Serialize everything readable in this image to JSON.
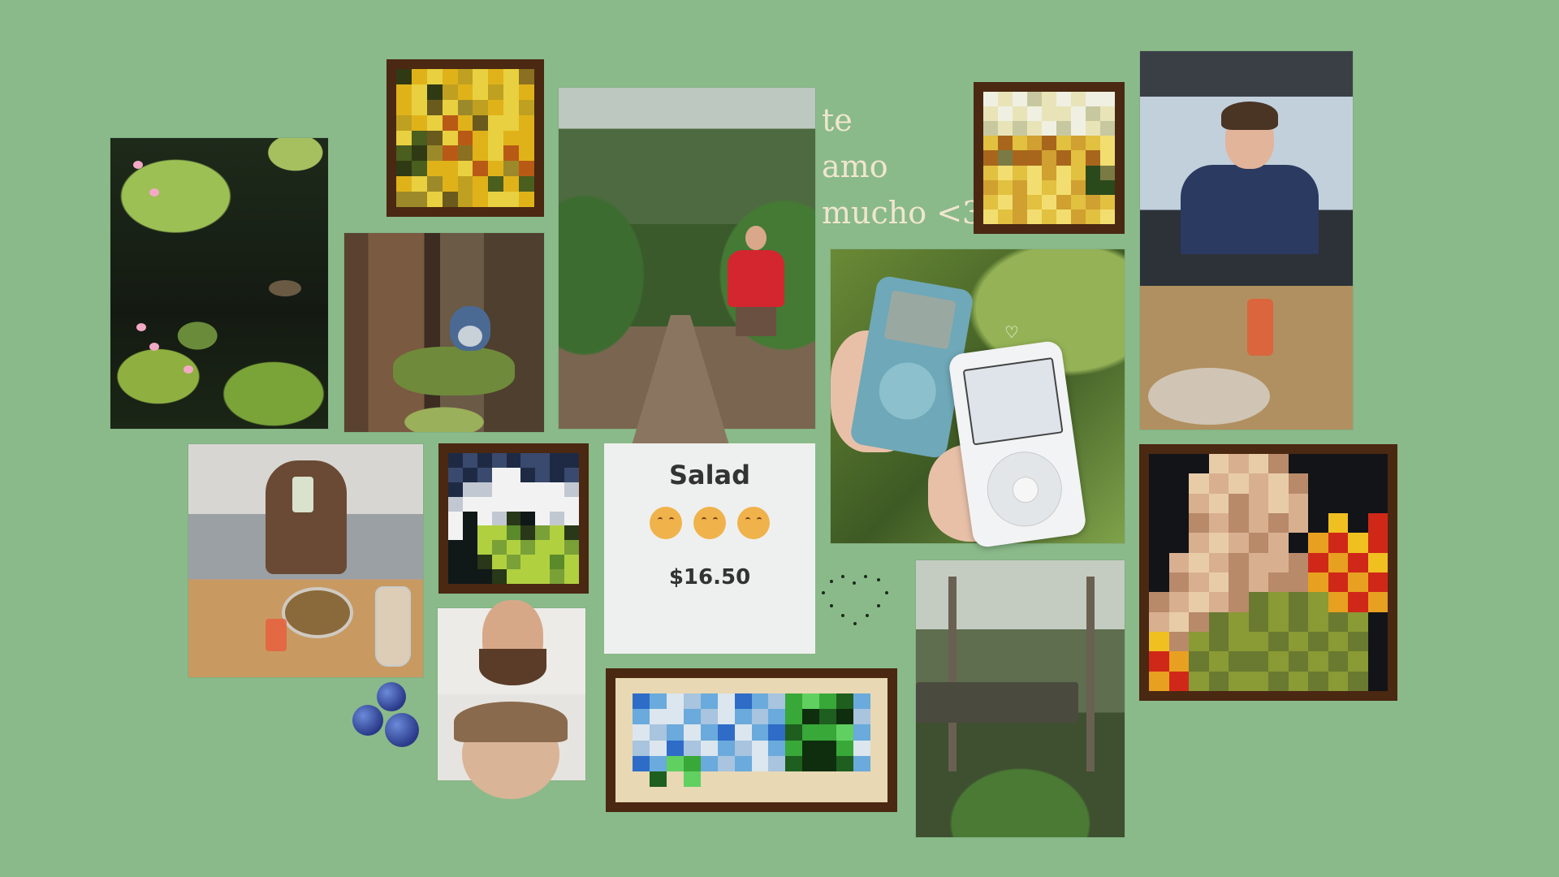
{
  "background_color": "#8aba8a",
  "love_text": {
    "line1": "te",
    "line2": "amo",
    "line3": "mucho <3"
  },
  "salad_card": {
    "title": "Salad",
    "price": "$16.50"
  },
  "pixel_art": {
    "sunflowers": {
      "cols": 9,
      "rows": 9,
      "palette": [
        "#2f3a14",
        "#e0b21a",
        "#9c8a2a",
        "#6a5a1e",
        "#c0a020",
        "#4a5e1e",
        "#e8d040",
        "#b85a16",
        "#8a7020"
      ],
      "cells": [
        0,
        1,
        6,
        1,
        4,
        6,
        1,
        6,
        8,
        1,
        6,
        0,
        4,
        1,
        6,
        4,
        6,
        1,
        1,
        6,
        3,
        6,
        2,
        4,
        1,
        6,
        4,
        4,
        1,
        6,
        7,
        1,
        3,
        6,
        6,
        1,
        6,
        5,
        3,
        6,
        7,
        1,
        6,
        1,
        1,
        5,
        0,
        2,
        7,
        8,
        1,
        6,
        7,
        1,
        0,
        5,
        1,
        1,
        6,
        7,
        1,
        2,
        7,
        1,
        6,
        2,
        1,
        4,
        1,
        5,
        1,
        5,
        2,
        2,
        6,
        3,
        4,
        1,
        6,
        6,
        1
      ]
    },
    "houses": {
      "cols": 9,
      "rows": 9,
      "palette": [
        "#f0f0e2",
        "#e8e4b8",
        "#c8c8a0",
        "#e2c040",
        "#a8661c",
        "#d0a030",
        "#f2de70",
        "#7a7a44",
        "#2a4a1c"
      ],
      "cells": [
        0,
        1,
        0,
        2,
        1,
        0,
        1,
        0,
        0,
        1,
        0,
        1,
        0,
        1,
        1,
        0,
        2,
        1,
        2,
        1,
        2,
        1,
        0,
        2,
        0,
        1,
        2,
        3,
        4,
        3,
        5,
        4,
        3,
        5,
        3,
        6,
        4,
        7,
        4,
        4,
        5,
        4,
        3,
        4,
        6,
        3,
        6,
        3,
        6,
        5,
        6,
        3,
        8,
        7,
        5,
        3,
        5,
        6,
        3,
        6,
        5,
        8,
        8,
        3,
        6,
        5,
        3,
        6,
        5,
        3,
        5,
        3,
        6,
        3,
        5,
        6,
        3,
        6,
        5,
        3,
        6
      ]
    },
    "landscape": {
      "cols": 9,
      "rows": 9,
      "palette": [
        "#1e2a44",
        "#3a4a6e",
        "#f2f2f2",
        "#c2c8d2",
        "#101818",
        "#b0d040",
        "#5a8a2a",
        "#283818",
        "#7aa038"
      ],
      "cells": [
        0,
        1,
        0,
        1,
        0,
        1,
        1,
        0,
        0,
        1,
        0,
        1,
        2,
        2,
        0,
        1,
        0,
        1,
        0,
        3,
        3,
        2,
        2,
        2,
        2,
        2,
        3,
        3,
        2,
        2,
        2,
        2,
        2,
        2,
        2,
        2,
        2,
        4,
        2,
        3,
        7,
        4,
        2,
        3,
        2,
        2,
        4,
        5,
        5,
        6,
        7,
        8,
        5,
        7,
        4,
        4,
        5,
        8,
        5,
        8,
        5,
        5,
        8,
        4,
        4,
        7,
        5,
        8,
        5,
        5,
        6,
        5,
        4,
        4,
        4,
        7,
        5,
        5,
        5,
        8,
        5
      ]
    },
    "creeper": {
      "cols": 16,
      "rows": 8,
      "palette": [
        "#e8d8b4",
        "#2e6cc8",
        "#6aaadc",
        "#dce6ee",
        "#a8c4de",
        "#38a838",
        "#1e5e1e",
        "#60d060",
        "#0e2e0e"
      ],
      "cells": [
        0,
        0,
        0,
        0,
        0,
        0,
        0,
        0,
        0,
        0,
        0,
        0,
        0,
        0,
        0,
        0,
        0,
        1,
        2,
        3,
        4,
        2,
        3,
        1,
        2,
        4,
        5,
        7,
        5,
        6,
        2,
        0,
        0,
        2,
        3,
        3,
        2,
        4,
        3,
        2,
        4,
        2,
        5,
        8,
        6,
        8,
        4,
        0,
        0,
        3,
        4,
        2,
        3,
        2,
        1,
        3,
        2,
        1,
        6,
        5,
        5,
        7,
        2,
        0,
        0,
        4,
        3,
        1,
        4,
        3,
        2,
        4,
        3,
        2,
        5,
        8,
        8,
        5,
        3,
        0,
        0,
        1,
        2,
        7,
        5,
        2,
        4,
        2,
        3,
        4,
        6,
        8,
        8,
        6,
        2,
        0,
        0,
        0,
        6,
        0,
        7,
        0,
        0,
        0,
        0,
        0,
        0,
        0,
        0,
        0,
        0,
        0,
        0,
        0,
        0,
        0,
        0,
        0,
        0,
        0,
        0,
        0,
        0,
        0,
        0,
        0,
        0,
        0
      ]
    },
    "statue": {
      "cols": 12,
      "rows": 12,
      "palette": [
        "#121418",
        "#d8b090",
        "#b88a6a",
        "#e8cca8",
        "#e8a020",
        "#d02818",
        "#f0c020",
        "#6a7a30",
        "#8a9a34"
      ],
      "cells": [
        0,
        0,
        0,
        3,
        1,
        3,
        2,
        0,
        0,
        0,
        0,
        0,
        0,
        0,
        3,
        1,
        3,
        1,
        3,
        2,
        0,
        0,
        0,
        0,
        0,
        0,
        1,
        3,
        2,
        1,
        3,
        1,
        0,
        0,
        0,
        0,
        0,
        0,
        2,
        1,
        2,
        1,
        2,
        1,
        0,
        6,
        0,
        5,
        0,
        0,
        1,
        3,
        1,
        2,
        1,
        0,
        4,
        5,
        6,
        5,
        0,
        1,
        3,
        1,
        2,
        1,
        1,
        2,
        5,
        4,
        5,
        6,
        0,
        2,
        1,
        3,
        2,
        1,
        2,
        2,
        4,
        5,
        4,
        5,
        2,
        1,
        3,
        1,
        2,
        7,
        8,
        7,
        8,
        4,
        5,
        4,
        1,
        3,
        2,
        7,
        8,
        7,
        8,
        7,
        8,
        7,
        8,
        0,
        6,
        2,
        8,
        7,
        8,
        8,
        7,
        8,
        7,
        8,
        7,
        0,
        5,
        4,
        7,
        8,
        7,
        7,
        8,
        7,
        8,
        7,
        8,
        0,
        4,
        5,
        8,
        7,
        8,
        8,
        7,
        8,
        7,
        8,
        7,
        0
      ]
    }
  }
}
